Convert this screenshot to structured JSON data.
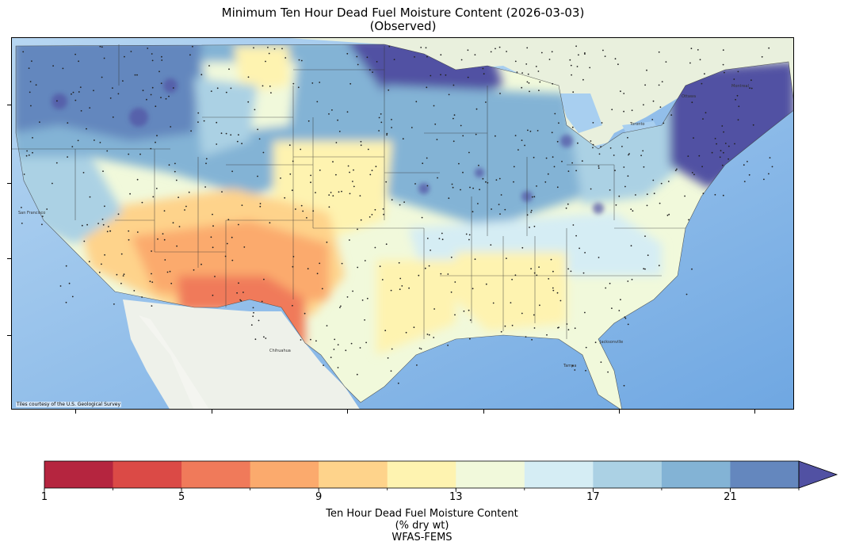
{
  "title": "Minimum Ten Hour Dead Fuel Moisture Content (2026-03-03)",
  "subtitle": "(Observed)",
  "attribution": "Tiles courtesy of the U.S. Geological Survey",
  "colorbar": {
    "label_lines": [
      "Ten Hour Dead Fuel Moisture Content",
      "(% dry wt)",
      "WFAS-FEMS"
    ],
    "tick_labels": [
      "1",
      "5",
      "9",
      "13",
      "17",
      "21"
    ],
    "tick_values": [
      1,
      5,
      9,
      13,
      17,
      21
    ],
    "range": [
      1,
      24
    ],
    "extend": "max",
    "bins": [
      {
        "from": 1,
        "to": 3,
        "color": "#b5253f"
      },
      {
        "from": 3,
        "to": 5,
        "color": "#db4a46"
      },
      {
        "from": 5,
        "to": 7,
        "color": "#f07a5a"
      },
      {
        "from": 7,
        "to": 9,
        "color": "#fbaa6d"
      },
      {
        "from": 9,
        "to": 11,
        "color": "#fed38b"
      },
      {
        "from": 11,
        "to": 13,
        "color": "#fef3b0"
      },
      {
        "from": 13,
        "to": 15,
        "color": "#f1f9db"
      },
      {
        "from": 15,
        "to": 17,
        "color": "#d5edf4"
      },
      {
        "from": 17,
        "to": 19,
        "color": "#abd1e4"
      },
      {
        "from": 19,
        "to": 21,
        "color": "#83b3d5"
      },
      {
        "from": 21,
        "to": 23,
        "color": "#6487be"
      },
      {
        "from": 23,
        "to": 25,
        "color": "#5151a3"
      }
    ]
  },
  "map": {
    "background_colors": {
      "ocean": "#9cc8ee",
      "land_base": "#e8efe0",
      "lakes": "#a8cff0",
      "state_lines": "#333333"
    },
    "labels": [
      "San Francisco",
      "Chihuahua",
      "Jacksonville",
      "Tampa",
      "Montreal",
      "Ottawa",
      "Toronto"
    ]
  }
}
